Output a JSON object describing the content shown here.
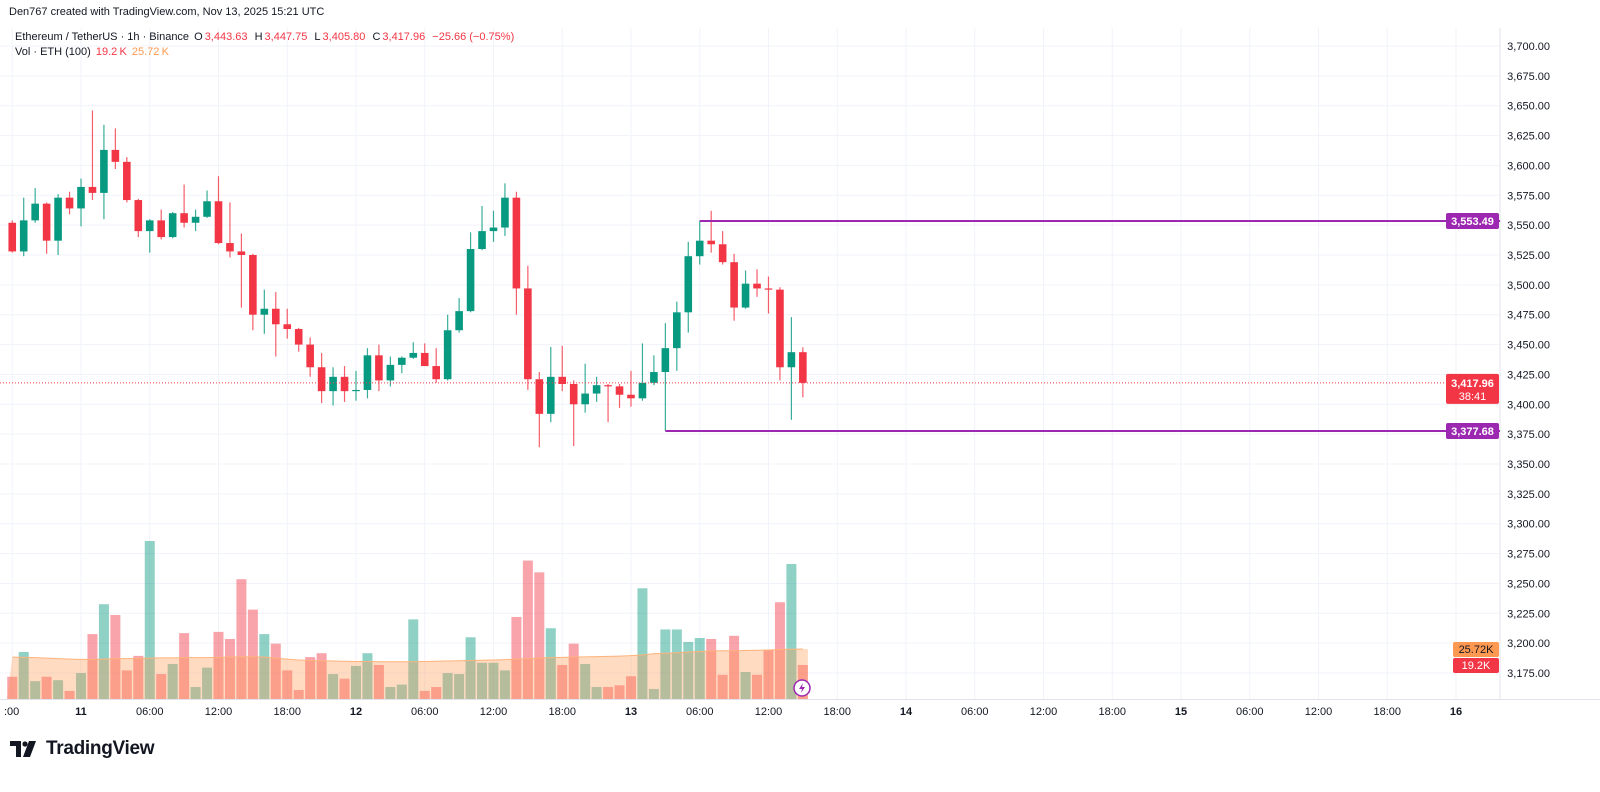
{
  "attribution": "Den767 created with TradingView.com, Nov 13, 2025 15:21 UTC",
  "legend": {
    "symbol": "Ethereum / TetherUS · 1h · Binance",
    "o_label": "O",
    "o": "3,443.63",
    "h_label": "H",
    "h": "3,447.75",
    "l_label": "L",
    "l": "3,405.80",
    "c_label": "C",
    "c": "3,417.96",
    "change": "−25.66 (−0.75%)",
    "vol_label": "Vol · ETH (100)",
    "vol": "19.2 K",
    "vol_ma": "25.72 K"
  },
  "footer": {
    "brand": "TradingView"
  },
  "colors": {
    "up": "#089981",
    "down": "#f23645",
    "level_line": "#9c27b0",
    "volume_ma": "#ff9850",
    "grid": "#f0f3fa"
  },
  "chart_data": {
    "type": "candlestick",
    "interval": "1h",
    "ylim": [
      3160,
      3712
    ],
    "grid": true,
    "y_ticks": [
      "3,700.00",
      "3,675.00",
      "3,650.00",
      "3,625.00",
      "3,600.00",
      "3,575.00",
      "3,550.00",
      "3,525.00",
      "3,500.00",
      "3,475.00",
      "3,450.00",
      "3,425.00",
      "3,400.00",
      "3,375.00",
      "3,350.00",
      "3,325.00",
      "3,300.00",
      "3,275.00",
      "3,250.00",
      "3,225.00",
      "3,200.00",
      "3,175.00"
    ],
    "x_ticks": [
      ":00",
      "11",
      "06:00",
      "12:00",
      "18:00",
      "12",
      "06:00",
      "12:00",
      "18:00",
      "13",
      "06:00",
      "12:00",
      "18:00",
      "14",
      "06:00",
      "12:00",
      "18:00",
      "15",
      "06:00",
      "12:00",
      "18:00",
      "16"
    ],
    "candle_columns": [
      "time",
      "open",
      "high",
      "low",
      "close",
      "volume_k"
    ],
    "candles": [
      [
        "Nov 10 18:00",
        3552,
        3554,
        3527,
        3528,
        14.4
      ],
      [
        "Nov 10 19:00",
        3528,
        3573,
        3524,
        3554,
        24.5
      ],
      [
        "Nov 10 20:00",
        3554,
        3581,
        3552,
        3568,
        12.6
      ],
      [
        "Nov 10 21:00",
        3568,
        3569,
        3526,
        3537,
        14.4
      ],
      [
        "Nov 10 22:00",
        3537,
        3576,
        3525,
        3573,
        13.0
      ],
      [
        "Nov 10 23:00",
        3573,
        3578,
        3559,
        3564,
        8.6
      ],
      [
        "Nov 11 00:00",
        3564,
        3589,
        3549,
        3582,
        15.9
      ],
      [
        "Nov 11 01:00",
        3582,
        3646,
        3571,
        3577,
        31.8
      ],
      [
        "Nov 11 02:00",
        3577,
        3634,
        3555,
        3613,
        44.0
      ],
      [
        "Nov 11 03:00",
        3613,
        3631,
        3597,
        3603,
        39.6
      ],
      [
        "Nov 11 04:00",
        3603,
        3607,
        3569,
        3571,
        17.0
      ],
      [
        "Nov 11 05:00",
        3571,
        3572,
        3540,
        3545,
        22.9
      ],
      [
        "Nov 11 06:00",
        3545,
        3555,
        3527,
        3554,
        69.8
      ],
      [
        "Nov 11 07:00",
        3554,
        3563,
        3538,
        3540,
        15.5
      ],
      [
        "Nov 11 08:00",
        3540,
        3561,
        3539,
        3560,
        19.6
      ],
      [
        "Nov 11 09:00",
        3560,
        3584,
        3548,
        3552,
        32.2
      ],
      [
        "Nov 11 10:00",
        3552,
        3563,
        3545,
        3557,
        10.2
      ],
      [
        "Nov 11 11:00",
        3557,
        3579,
        3556,
        3570,
        18.1
      ],
      [
        "Nov 11 12:00",
        3570,
        3591,
        3534,
        3535,
        32.7
      ],
      [
        "Nov 11 13:00",
        3535,
        3569,
        3523,
        3528,
        29.8
      ],
      [
        "Nov 11 14:00",
        3528,
        3543,
        3481,
        3525,
        54.2
      ],
      [
        "Nov 11 15:00",
        3525,
        3526,
        3462,
        3475,
        41.8
      ],
      [
        "Nov 11 16:00",
        3475,
        3496,
        3459,
        3480,
        31.8
      ],
      [
        "Nov 11 17:00",
        3480,
        3494,
        3440,
        3467,
        27.9
      ],
      [
        "Nov 11 18:00",
        3467,
        3480,
        3455,
        3463,
        17.0
      ],
      [
        "Nov 11 19:00",
        3463,
        3464,
        3444,
        3450,
        9.0
      ],
      [
        "Nov 11 20:00",
        3450,
        3456,
        3423,
        3431,
        22.4
      ],
      [
        "Nov 11 21:00",
        3431,
        3443,
        3401,
        3411,
        24.0
      ],
      [
        "Nov 11 22:00",
        3411,
        3431,
        3399,
        3423,
        15.5
      ],
      [
        "Nov 11 23:00",
        3423,
        3432,
        3402,
        3411,
        13.6
      ],
      [
        "Nov 12 00:00",
        3411,
        3428,
        3403,
        3412,
        18.8
      ],
      [
        "Nov 12 01:00",
        3412,
        3447,
        3405,
        3441,
        24.0
      ],
      [
        "Nov 12 02:00",
        3441,
        3450,
        3411,
        3420,
        19.2
      ],
      [
        "Nov 12 03:00",
        3420,
        3440,
        3415,
        3433,
        10.2
      ],
      [
        "Nov 12 04:00",
        3433,
        3440,
        3426,
        3439,
        11.2
      ],
      [
        "Nov 12 05:00",
        3439,
        3452,
        3438,
        3443,
        37.8
      ],
      [
        "Nov 12 06:00",
        3443,
        3451,
        3432,
        3432,
        8.6
      ],
      [
        "Nov 12 07:00",
        3432,
        3447,
        3418,
        3421,
        10.2
      ],
      [
        "Nov 12 08:00",
        3421,
        3475,
        3420,
        3462,
        15.9
      ],
      [
        "Nov 12 09:00",
        3462,
        3489,
        3460,
        3478,
        15.5
      ],
      [
        "Nov 12 10:00",
        3478,
        3544,
        3477,
        3530,
        30.5
      ],
      [
        "Nov 12 11:00",
        3530,
        3566,
        3529,
        3545,
        20.1
      ],
      [
        "Nov 12 12:00",
        3545,
        3562,
        3536,
        3548,
        20.1
      ],
      [
        "Nov 12 13:00",
        3548,
        3585,
        3541,
        3573,
        17.0
      ],
      [
        "Nov 12 14:00",
        3573,
        3578,
        3475,
        3497,
        38.8
      ],
      [
        "Nov 12 15:00",
        3497,
        3516,
        3412,
        3421,
        61.8
      ],
      [
        "Nov 12 16:00",
        3421,
        3427,
        3364,
        3392,
        57.0
      ],
      [
        "Nov 12 17:00",
        3392,
        3448,
        3385,
        3423,
        34.2
      ],
      [
        "Nov 12 18:00",
        3423,
        3449,
        3411,
        3417,
        19.2
      ],
      [
        "Nov 12 19:00",
        3417,
        3420,
        3365,
        3400,
        27.9
      ],
      [
        "Nov 12 20:00",
        3400,
        3434,
        3393,
        3409,
        19.6
      ],
      [
        "Nov 12 21:00",
        3409,
        3423,
        3402,
        3416,
        10.2
      ],
      [
        "Nov 12 22:00",
        3416,
        3417,
        3385,
        3415,
        10.2
      ],
      [
        "Nov 12 23:00",
        3415,
        3417,
        3397,
        3408,
        10.9
      ],
      [
        "Nov 13 00:00",
        3408,
        3428,
        3398,
        3405,
        14.6
      ],
      [
        "Nov 13 01:00",
        3405,
        3451,
        3403,
        3418,
        50.5
      ],
      [
        "Nov 13 02:00",
        3418,
        3441,
        3416,
        3427,
        9.4
      ],
      [
        "Nov 13 03:00",
        3427,
        3468,
        3377.68,
        3447,
        33.7
      ],
      [
        "Nov 13 04:00",
        3447,
        3486,
        3428,
        3477,
        33.7
      ],
      [
        "Nov 13 05:00",
        3477,
        3536,
        3460,
        3524,
        28.6
      ],
      [
        "Nov 13 06:00",
        3524,
        3553.49,
        3517,
        3537,
        30.2
      ],
      [
        "Nov 13 07:00",
        3537,
        3562,
        3527,
        3534,
        29.8
      ],
      [
        "Nov 13 08:00",
        3534,
        3545,
        3517,
        3519,
        15.2
      ],
      [
        "Nov 13 09:00",
        3519,
        3526,
        3470,
        3481,
        31.1
      ],
      [
        "Nov 13 10:00",
        3481,
        3512,
        3480,
        3501,
        16.3
      ],
      [
        "Nov 13 11:00",
        3501,
        3513,
        3490,
        3497,
        15.2
      ],
      [
        "Nov 13 12:00",
        3497,
        3507,
        3476,
        3496,
        25.3
      ],
      [
        "Nov 13 13:00",
        3496,
        3498,
        3420,
        3431,
        44.8
      ],
      [
        "Nov 13 14:00",
        3431,
        3473,
        3387,
        3443.62,
        60.4
      ],
      [
        "Nov 13 15:00",
        3443.63,
        3447.75,
        3405.8,
        3417.96,
        19.2
      ]
    ],
    "volume_ma_k": [
      22.4,
      22.3,
      22.2,
      22.0,
      21.8,
      21.6,
      21.5,
      21.5,
      21.6,
      21.8,
      21.8,
      21.9,
      22.0,
      22.1,
      22.1,
      22.2,
      22.2,
      22.2,
      22.3,
      22.4,
      22.5,
      22.5,
      22.4,
      22.0,
      21.6,
      21.2,
      21.0,
      20.9,
      20.8,
      20.7,
      20.6,
      20.6,
      20.5,
      20.5,
      20.5,
      20.5,
      20.6,
      20.7,
      20.8,
      20.9,
      21.0,
      21.1,
      21.2,
      21.4,
      21.6,
      21.8,
      22.0,
      22.2,
      22.3,
      22.4,
      22.5,
      22.6,
      22.7,
      22.8,
      23.0,
      23.3,
      23.8,
      24.0,
      24.2,
      24.5,
      24.7,
      24.9,
      25.0,
      25.0,
      25.1,
      25.2,
      25.3,
      25.5,
      25.6,
      25.72
    ],
    "levels": [
      {
        "price": 3553.49,
        "label": "3,553.49",
        "from": "Nov 13 06:00"
      },
      {
        "price": 3377.68,
        "label": "3,377.68",
        "from": "Nov 13 03:00"
      }
    ],
    "last_price": {
      "price": 3417.96,
      "label": "3,417.96",
      "countdown": "38:41"
    },
    "volume_labels": {
      "ma": "25.72K",
      "volume": "19.2K"
    }
  }
}
